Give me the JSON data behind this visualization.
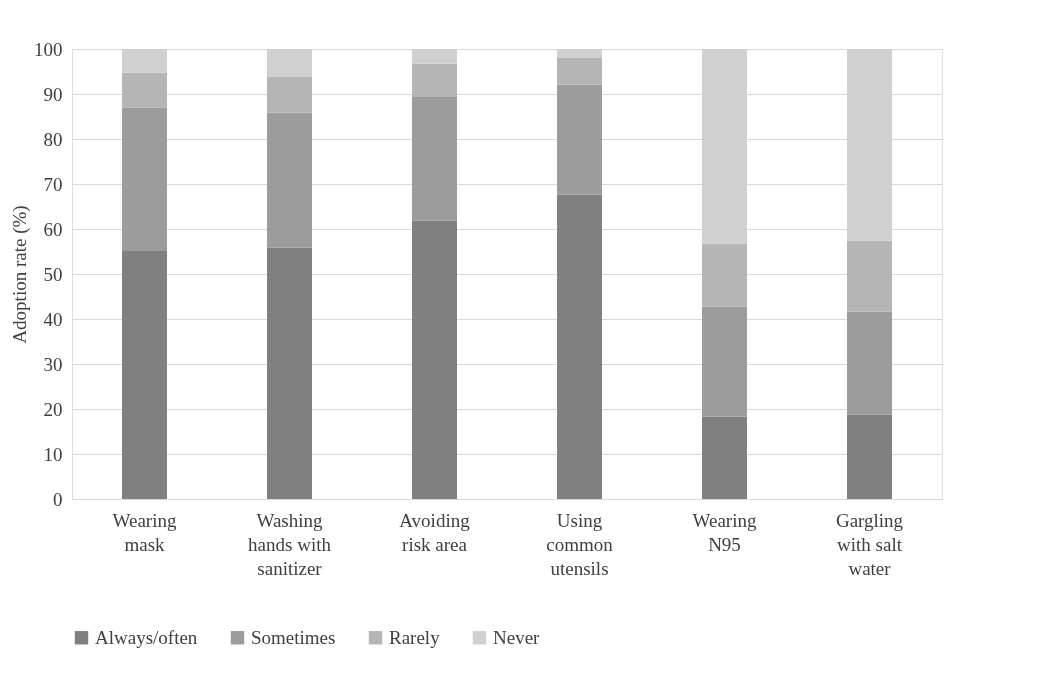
{
  "chart_data": {
    "type": "bar",
    "stacked": true,
    "ylabel": "Adoption rate (%)",
    "categories": [
      "Wearing\nmask",
      "Washing\nhands with\nsanitizer",
      "Avoiding\nrisk area",
      "Using\ncommon\nutensils",
      "Wearing\nN95",
      "Gargling\nwith salt\nwater"
    ],
    "series": [
      {
        "name": "Always/often",
        "color": "#808080",
        "values": [
          55.1,
          55.9,
          61.9,
          67.6,
          18.3,
          18.7
        ]
      },
      {
        "name": "Sometimes",
        "color": "#9c9c9c",
        "values": [
          31.9,
          30.0,
          27.6,
          24.5,
          24.4,
          22.9
        ]
      },
      {
        "name": "Rarely",
        "color": "#b5b5b5",
        "values": [
          7.8,
          7.9,
          7.2,
          5.9,
          14.0,
          15.8
        ]
      },
      {
        "name": "Never",
        "color": "#d0d0d0",
        "values": [
          5.2,
          6.2,
          3.3,
          2.0,
          43.3,
          42.6
        ]
      }
    ],
    "ylim": [
      0,
      100
    ],
    "yticks": [
      0,
      10,
      20,
      30,
      40,
      50,
      60,
      70,
      80,
      90,
      100
    ],
    "grid": "y",
    "legend": "bottom"
  }
}
